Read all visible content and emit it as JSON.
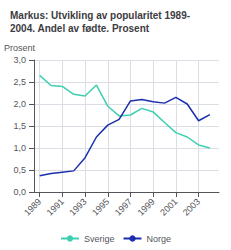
{
  "chart_data": {
    "type": "line",
    "title": "Markus: Utvikling av popularitet 1989-\n2004. Andel av fødte. Prosent",
    "ylabel": "Prosent",
    "x": [
      1989,
      1990,
      1991,
      1992,
      1993,
      1994,
      1995,
      1996,
      1997,
      1998,
      1999,
      2000,
      2001,
      2002,
      2003,
      2004
    ],
    "series": [
      {
        "name": "Sverige",
        "color": "#3ecfb2",
        "values": [
          2.65,
          2.42,
          2.4,
          2.22,
          2.18,
          2.43,
          1.95,
          1.73,
          1.75,
          1.9,
          1.82,
          1.58,
          1.35,
          1.25,
          1.07,
          1.0
        ]
      },
      {
        "name": "Norge",
        "color": "#1a2fad",
        "values": [
          0.37,
          0.42,
          0.45,
          0.48,
          0.78,
          1.25,
          1.52,
          1.65,
          2.07,
          2.1,
          2.05,
          2.02,
          2.15,
          2.0,
          1.62,
          1.76
        ]
      }
    ],
    "xlim": [
      1988.5,
      2004.8
    ],
    "xticks": [
      1989,
      1991,
      1993,
      1995,
      1997,
      1999,
      2001,
      2003
    ],
    "ylim": [
      0.0,
      3.0
    ],
    "yticks": [
      {
        "value": 0.0,
        "label": "0,0"
      },
      {
        "value": 0.5,
        "label": "0,5"
      },
      {
        "value": 1.0,
        "label": "1,0"
      },
      {
        "value": 1.5,
        "label": "1,5"
      },
      {
        "value": 2.0,
        "label": "2,0"
      },
      {
        "value": 2.5,
        "label": "2,5"
      },
      {
        "value": 3.0,
        "label": "3,0"
      }
    ],
    "grid": true,
    "legend": "bottom"
  }
}
